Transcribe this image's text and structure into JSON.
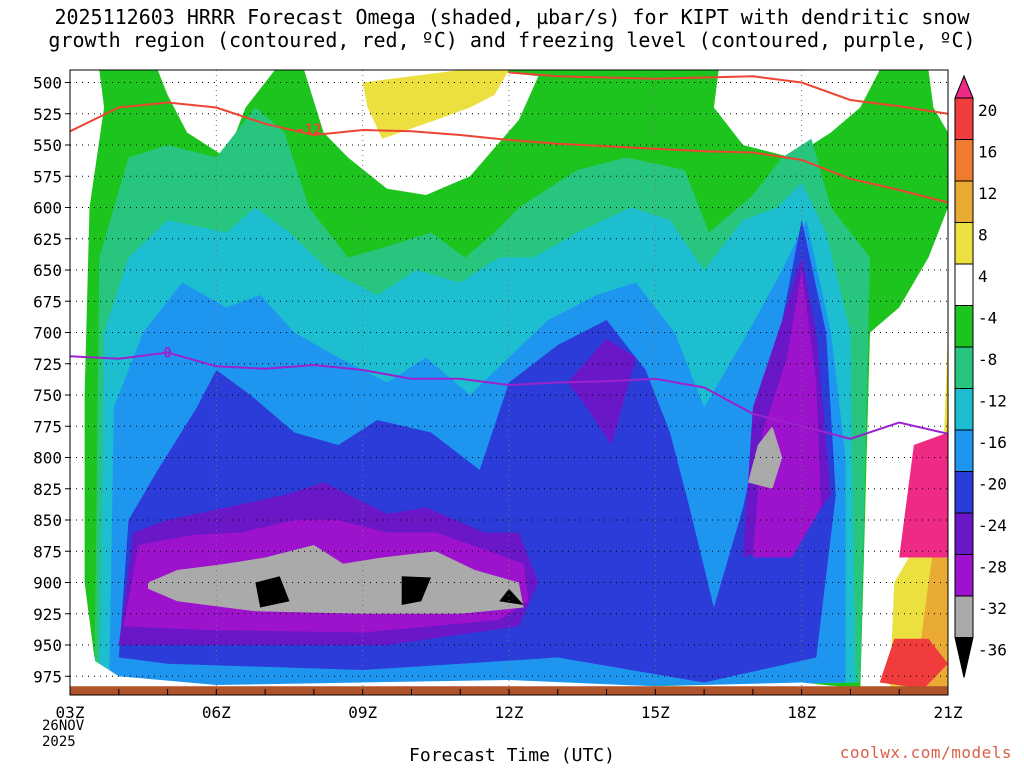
{
  "title_line1": "2025112603 HRRR Forecast Omega (shaded, µbar/s) for KIPT with dendritic snow",
  "title_line2": "growth region (contoured, red, ºC) and freezing level (contoured, purple, ºC)",
  "xlabel": "Forecast Time (UTC)",
  "date_day": "26NOV",
  "date_year": "2025",
  "credit": "coolwx.com/models",
  "chart_data": {
    "type": "heatmap",
    "x_ticks": [
      "03Z",
      "06Z",
      "09Z",
      "12Z",
      "15Z",
      "18Z",
      "21Z"
    ],
    "x_hours": [
      3,
      6,
      9,
      12,
      15,
      18,
      21
    ],
    "y_ticks": [
      500,
      525,
      550,
      575,
      600,
      625,
      650,
      675,
      700,
      725,
      750,
      775,
      800,
      825,
      850,
      875,
      900,
      925,
      950,
      975
    ],
    "ylim": [
      490,
      990
    ],
    "xlim": [
      3,
      21
    ],
    "colorbar_labels": [
      "20",
      "16",
      "12",
      "8",
      "4",
      "-4",
      "-8",
      "-12",
      "-16",
      "-20",
      "-24",
      "-28",
      "-32",
      "-36"
    ],
    "colorbar_levels": [
      20,
      16,
      12,
      8,
      4,
      -4,
      -8,
      -12,
      -16,
      -20,
      -24,
      -28,
      -32,
      -36
    ],
    "shading_colors": {
      "above_20": "#ee2a84",
      "16_20": "#f03c3c",
      "12_16": "#ef7c2e",
      "8_12": "#e9ab33",
      "4_8": "#ebe040",
      "-4_4": "#ffffff",
      "-8_-4": "#1ec41e",
      "-12_-8": "#28c57f",
      "-16_-12": "#1cbed0",
      "-20_-16": "#1e96f0",
      "-24_-20": "#2c3cd8",
      "-28_-24": "#6a17c8",
      "-32_-28": "#9d12cc",
      "-36_-32": "#aaaaaa",
      "below_-36": "#000000"
    },
    "contours": [
      {
        "label": "-12",
        "color": "#ee4433",
        "points": [
          [
            3,
            539
          ],
          [
            4,
            520
          ],
          [
            5,
            516
          ],
          [
            6,
            520
          ],
          [
            7,
            533
          ],
          [
            8,
            542
          ],
          [
            9,
            538
          ],
          [
            10,
            539
          ],
          [
            11,
            542
          ],
          [
            12,
            546
          ],
          [
            13,
            549
          ],
          [
            14,
            551
          ],
          [
            15,
            553
          ],
          [
            16,
            555
          ],
          [
            17,
            556
          ],
          [
            18,
            562
          ],
          [
            19,
            577
          ],
          [
            20,
            586
          ],
          [
            21,
            596
          ]
        ]
      },
      {
        "label": "",
        "color": "#ee4433",
        "points": [
          [
            12,
            492
          ],
          [
            13,
            495
          ],
          [
            14,
            496
          ],
          [
            15,
            497
          ],
          [
            16,
            496
          ],
          [
            17,
            495
          ],
          [
            18,
            500
          ],
          [
            19,
            514
          ],
          [
            20,
            519
          ],
          [
            21,
            525
          ]
        ]
      },
      {
        "label": "0",
        "color": "#9b22cc",
        "points": [
          [
            3,
            719
          ],
          [
            4,
            721
          ],
          [
            5,
            716
          ],
          [
            6,
            727
          ],
          [
            7,
            729
          ],
          [
            8,
            726
          ],
          [
            9,
            730
          ],
          [
            10,
            737
          ],
          [
            11,
            737
          ],
          [
            12,
            742
          ],
          [
            13,
            740
          ],
          [
            14,
            739
          ],
          [
            15,
            737
          ],
          [
            16,
            744
          ],
          [
            17,
            765
          ],
          [
            18,
            775
          ],
          [
            19,
            785
          ],
          [
            20,
            772
          ],
          [
            21,
            781
          ]
        ]
      }
    ],
    "surface_band_color": "#b0522a"
  }
}
